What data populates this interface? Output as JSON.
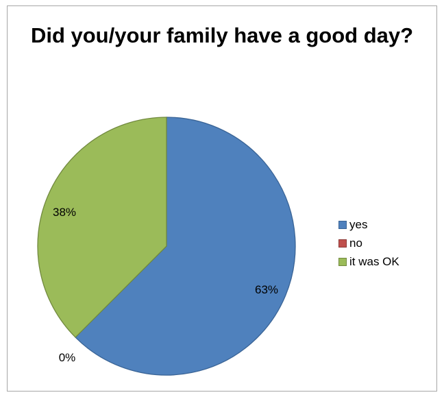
{
  "chart_data": {
    "type": "pie",
    "title": "Did you/your family have a good day?",
    "categories": [
      "yes",
      "no",
      "it was OK"
    ],
    "values": [
      62.5,
      0,
      37.5
    ],
    "data_labels": [
      "63%",
      "0%",
      "38%"
    ],
    "colors": [
      "#4f81bd",
      "#c0504d",
      "#9bbb59"
    ],
    "edge_colors": [
      "#3a6496",
      "#8c3836",
      "#71893f"
    ],
    "start_angle_deg": 0,
    "direction": "clockwise",
    "legend_position": "right"
  }
}
